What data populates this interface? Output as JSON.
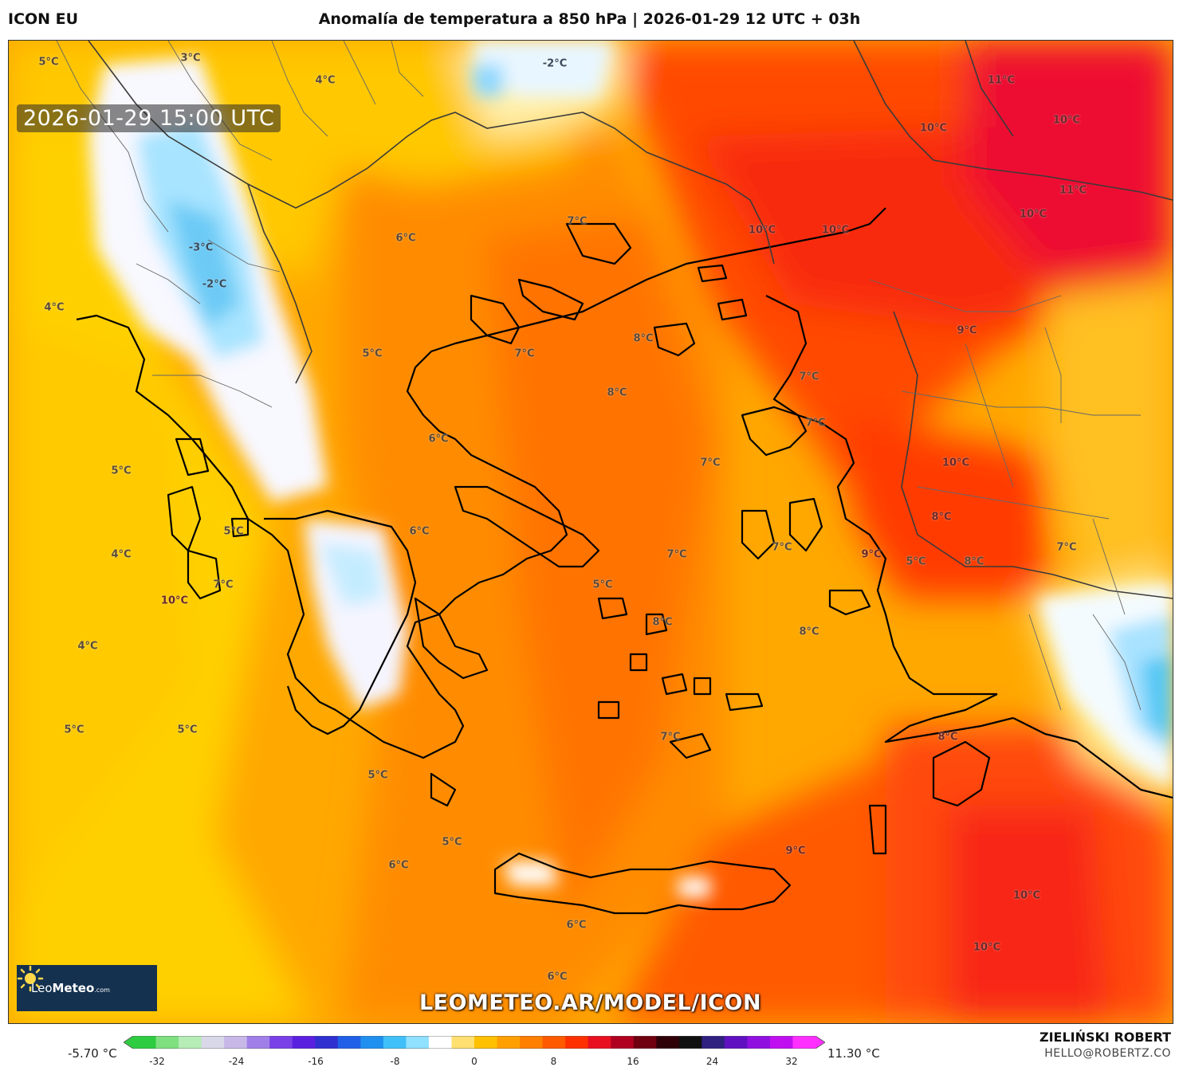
{
  "header": {
    "model": "ICON EU",
    "title": "Anomalía de temperatura a 850 hPa | 2026-01-29 12 UTC + 03h"
  },
  "map": {
    "timestamp": "2026-01-29 15:00 UTC",
    "watermark_url": "LEOMETEO.AR/MODEL/ICON",
    "logo": {
      "brand_regular": "Leo",
      "brand_bold": "Meteo",
      "domain_suffix": ".com"
    },
    "labels": [
      {
        "text": "5°C",
        "cls": "warm"
      },
      {
        "text": "3°C",
        "cls": "warm"
      },
      {
        "text": "-2°C",
        "cls": "cold"
      },
      {
        "text": "4°C",
        "cls": "warm"
      },
      {
        "text": "11°C",
        "cls": "hot"
      },
      {
        "text": "10°C",
        "cls": "hot"
      },
      {
        "text": "10°C",
        "cls": "hot"
      },
      {
        "text": "11°C",
        "cls": "hot"
      },
      {
        "text": "10°C",
        "cls": "hot"
      },
      {
        "text": "10°C",
        "cls": "hot"
      },
      {
        "text": "10°C",
        "cls": "hot"
      },
      {
        "text": "7°C",
        "cls": "warm"
      },
      {
        "text": "6°C",
        "cls": "warm"
      },
      {
        "text": "-3°C",
        "cls": "cold"
      },
      {
        "text": "-2°C",
        "cls": "cold"
      },
      {
        "text": "4°C",
        "cls": "warm"
      },
      {
        "text": "5°C",
        "cls": "warm"
      },
      {
        "text": "7°C",
        "cls": "warm"
      },
      {
        "text": "8°C",
        "cls": "warm"
      },
      {
        "text": "8°C",
        "cls": "warm"
      },
      {
        "text": "9°C",
        "cls": "hot"
      },
      {
        "text": "7°C",
        "cls": "warm"
      },
      {
        "text": "7°C",
        "cls": "warm"
      },
      {
        "text": "6°C",
        "cls": "warm"
      },
      {
        "text": "5°C",
        "cls": "warm"
      },
      {
        "text": "7°C",
        "cls": "warm"
      },
      {
        "text": "10°C",
        "cls": "hot"
      },
      {
        "text": "8°C",
        "cls": "hot"
      },
      {
        "text": "6°C",
        "cls": "warm"
      },
      {
        "text": "5°C",
        "cls": "warm"
      },
      {
        "text": "4°C",
        "cls": "warm"
      },
      {
        "text": "5°C",
        "cls": "warm"
      },
      {
        "text": "8°C",
        "cls": "warm"
      },
      {
        "text": "7°C",
        "cls": "warm"
      },
      {
        "text": "7°C",
        "cls": "warm"
      },
      {
        "text": "9°C",
        "cls": "hot"
      },
      {
        "text": "10°C",
        "cls": "hot"
      },
      {
        "text": "7°C",
        "cls": "warm"
      },
      {
        "text": "5°C",
        "cls": "warm"
      },
      {
        "text": "8°C",
        "cls": "warm"
      },
      {
        "text": "4°C",
        "cls": "warm"
      },
      {
        "text": "7°C",
        "cls": "warm"
      },
      {
        "text": "8°C",
        "cls": "warm"
      },
      {
        "text": "5°C",
        "cls": "warm"
      },
      {
        "text": "5°C",
        "cls": "warm"
      },
      {
        "text": "7°C",
        "cls": "warm"
      },
      {
        "text": "8°C",
        "cls": "hot"
      },
      {
        "text": "5°C",
        "cls": "warm"
      },
      {
        "text": "5°C",
        "cls": "warm"
      },
      {
        "text": "6°C",
        "cls": "warm"
      },
      {
        "text": "9°C",
        "cls": "hot"
      },
      {
        "text": "10°C",
        "cls": "hot"
      },
      {
        "text": "6°C",
        "cls": "warm"
      },
      {
        "text": "10°C",
        "cls": "hot"
      },
      {
        "text": "6°C",
        "cls": "warm"
      }
    ]
  },
  "colorbar": {
    "min_label": "-5.70 °C",
    "max_label": "11.30 °C",
    "ticks": [
      "-32",
      "-24",
      "-16",
      "-8",
      "0",
      "8",
      "16",
      "24",
      "32"
    ],
    "colors": [
      "#2ecc40",
      "#7ee07e",
      "#b6ecb6",
      "#d8d8e8",
      "#c8b8e8",
      "#a080e8",
      "#7a40e8",
      "#5a20e0",
      "#3030d0",
      "#2060e8",
      "#2090f0",
      "#40c0f8",
      "#90e0ff",
      "#ffffff",
      "#ffe070",
      "#ffc000",
      "#ffa000",
      "#ff7f00",
      "#ff5a00",
      "#ff3000",
      "#e81020",
      "#b00020",
      "#700010",
      "#300008",
      "#101010",
      "#302080",
      "#6010c0",
      "#9010e0",
      "#c010f0",
      "#ff30ff"
    ]
  },
  "credit": {
    "author": "ZIELIŃSKI ROBERT",
    "email": "HELLO@ROBERTZ.CO"
  }
}
